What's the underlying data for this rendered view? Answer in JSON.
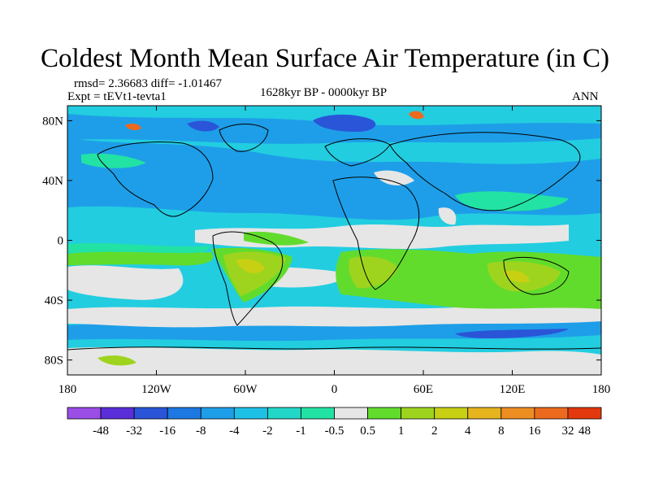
{
  "title": "Coldest Month Mean Surface Air Temperature (in C)",
  "stats": {
    "rmsd_line": "rmsd= 2.36683 diff= -1.01467",
    "expt_line": "Expt = tEVt1-tevta1",
    "period": "1628kyr BP - 0000kyr BP",
    "season": "ANN"
  },
  "map": {
    "projection": "cylindrical-equidistant",
    "lon_range": [
      -180,
      180
    ],
    "lat_range": [
      -90,
      90
    ],
    "lat_ticks": [
      {
        "value": 80,
        "label": "80N"
      },
      {
        "value": 40,
        "label": "40N"
      },
      {
        "value": 0,
        "label": "0"
      },
      {
        "value": -40,
        "label": "40S"
      },
      {
        "value": -80,
        "label": "80S"
      }
    ],
    "lon_ticks": [
      {
        "value": -180,
        "label": "180"
      },
      {
        "value": -120,
        "label": "120W"
      },
      {
        "value": -60,
        "label": "60W"
      },
      {
        "value": 0,
        "label": "0"
      },
      {
        "value": 60,
        "label": "60E"
      },
      {
        "value": 120,
        "label": "120E"
      },
      {
        "value": 180,
        "label": "180"
      }
    ]
  },
  "colorbar": {
    "colors": [
      "#9a4ee6",
      "#5a2ed8",
      "#2a55d8",
      "#1e78e2",
      "#1e9ee8",
      "#1ec0e6",
      "#22d6c8",
      "#22e2a4",
      "#e6e6e6",
      "#62dc2c",
      "#9ed41e",
      "#c8d014",
      "#e6b41e",
      "#ec8e22",
      "#ec6a1e",
      "#e4380e"
    ],
    "labels": [
      "-48",
      "-32",
      "-16",
      "-8",
      "-4",
      "-2",
      "-1",
      "-0.5",
      "0.5",
      "1",
      "2",
      "4",
      "8",
      "16",
      "32",
      "48"
    ],
    "label_anchor": "right-edge-of-box-except-last"
  },
  "legend": {
    "colors": {
      "background": "#22cde0",
      "neutral": "#e6e6e6",
      "warm_1": "#62dc2c",
      "warm_2": "#9ed41e",
      "warm_4": "#c8d014",
      "cool_light": "#22e2a4",
      "cool_mid": "#1e9ee8",
      "cool_deep": "#2a55d8",
      "hot": "#ec6a1e"
    }
  }
}
